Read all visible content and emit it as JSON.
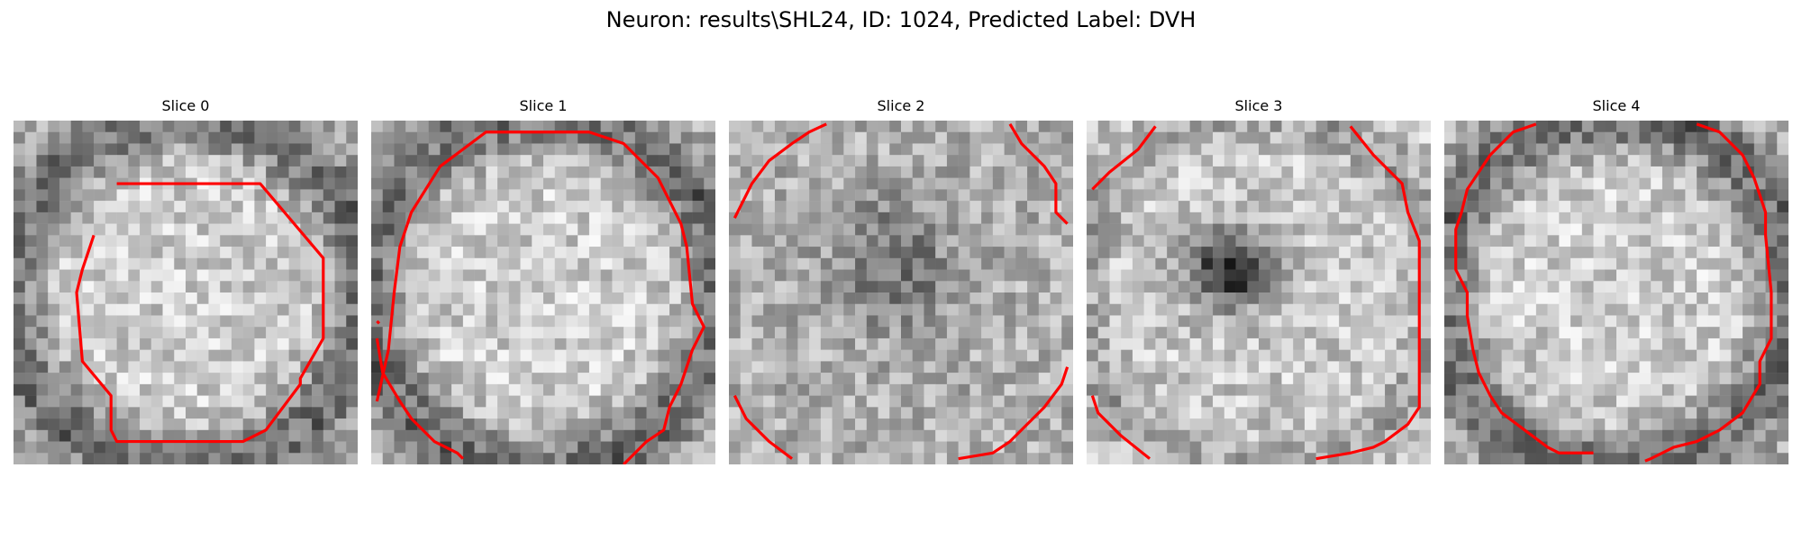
{
  "figure": {
    "title": "Neuron: results\\SHL24, ID: 1024, Predicted Label: DVH"
  },
  "colors": {
    "contour": "#ff0000",
    "background": "#ffffff"
  },
  "grid_size": 30,
  "slices": [
    {
      "label": "Slice 0",
      "style": "ring",
      "contours": [
        [
          [
            9,
            5.5
          ],
          [
            21.5,
            5.5
          ],
          [
            27,
            12
          ],
          [
            27,
            19
          ],
          [
            25,
            22.5
          ],
          [
            25,
            23
          ],
          [
            22,
            27
          ],
          [
            20,
            28
          ],
          [
            9,
            28
          ],
          [
            8.5,
            27
          ],
          [
            8.5,
            24
          ],
          [
            6,
            21
          ],
          [
            5.5,
            15
          ],
          [
            6,
            13
          ],
          [
            7,
            10
          ]
        ]
      ]
    },
    {
      "label": "Slice 1",
      "style": "ring",
      "contours": [
        [
          [
            0.5,
            24.5
          ],
          [
            1.5,
            20
          ],
          [
            2,
            15
          ],
          [
            2.5,
            11
          ],
          [
            3.5,
            8
          ],
          [
            6,
            4
          ],
          [
            10,
            1
          ],
          [
            19,
            1
          ],
          [
            22,
            2
          ],
          [
            25,
            5
          ],
          [
            27,
            9
          ],
          [
            27.5,
            11
          ],
          [
            28,
            16
          ],
          [
            29,
            18
          ],
          [
            28,
            20
          ],
          [
            27,
            23
          ],
          [
            26,
            25
          ],
          [
            25.5,
            27
          ],
          [
            24,
            28
          ],
          [
            22,
            30
          ]
        ],
        [
          [
            0.5,
            17.5
          ],
          [
            0.7,
            17.7
          ]
        ],
        [
          [
            0.5,
            19
          ],
          [
            1,
            22
          ],
          [
            2.5,
            24.5
          ],
          [
            3.5,
            26
          ],
          [
            5.5,
            28
          ],
          [
            7.5,
            29
          ],
          [
            8,
            29.5
          ]
        ]
      ]
    },
    {
      "label": "Slice 2",
      "style": "dark-center",
      "contours": [
        [
          [
            0.5,
            8.5
          ],
          [
            2,
            5.5
          ],
          [
            3.5,
            3.5
          ],
          [
            5.5,
            2
          ],
          [
            7,
            1
          ],
          [
            8.5,
            0.3
          ]
        ],
        [
          [
            24.5,
            0.3
          ],
          [
            25.5,
            2
          ],
          [
            27.5,
            4
          ],
          [
            28.5,
            5.5
          ],
          [
            28.5,
            8
          ],
          [
            29.5,
            9
          ]
        ],
        [
          [
            0.5,
            24
          ],
          [
            1.5,
            26
          ],
          [
            3.5,
            28
          ],
          [
            5.5,
            29.5
          ]
        ],
        [
          [
            29.5,
            21.5
          ],
          [
            29,
            23
          ],
          [
            27.5,
            25
          ],
          [
            26,
            26.5
          ],
          [
            24.5,
            28
          ],
          [
            23,
            29
          ],
          [
            20,
            29.5
          ]
        ]
      ]
    },
    {
      "label": "Slice 3",
      "style": "hole",
      "contours": [
        [
          [
            0.5,
            6
          ],
          [
            2,
            4.5
          ],
          [
            4.5,
            2.5
          ],
          [
            6,
            0.5
          ]
        ],
        [
          [
            23,
            0.5
          ],
          [
            25,
            3
          ],
          [
            27.5,
            5.5
          ],
          [
            28,
            8
          ],
          [
            29,
            10.5
          ],
          [
            29,
            25
          ],
          [
            28,
            26.5
          ],
          [
            26,
            28
          ],
          [
            25,
            28.5
          ],
          [
            23,
            29
          ],
          [
            20,
            29.5
          ]
        ],
        [
          [
            0.5,
            24
          ],
          [
            1,
            25.5
          ],
          [
            3,
            27.5
          ],
          [
            5.5,
            29.5
          ]
        ]
      ]
    },
    {
      "label": "Slice 4",
      "style": "ring",
      "contours": [
        [
          [
            8,
            0.3
          ],
          [
            6,
            1
          ],
          [
            4,
            3
          ],
          [
            2,
            6
          ],
          [
            1.5,
            8
          ],
          [
            1,
            9.5
          ],
          [
            1,
            13
          ],
          [
            2,
            15
          ],
          [
            2,
            17
          ],
          [
            2.5,
            20
          ],
          [
            3,
            22
          ],
          [
            4,
            24
          ],
          [
            5,
            25.5
          ],
          [
            7,
            27
          ],
          [
            9,
            28.5
          ],
          [
            10,
            29
          ],
          [
            13,
            29
          ]
        ],
        [
          [
            22,
            0.3
          ],
          [
            24,
            1
          ],
          [
            26,
            3
          ],
          [
            27,
            5
          ],
          [
            27.5,
            6.5
          ],
          [
            28,
            8
          ],
          [
            28,
            10
          ],
          [
            28.5,
            15
          ],
          [
            28.5,
            19
          ],
          [
            27.5,
            21
          ],
          [
            27.5,
            23
          ],
          [
            26,
            25.5
          ],
          [
            24,
            27
          ],
          [
            22,
            28
          ],
          [
            20,
            28.5
          ],
          [
            18,
            29.5
          ],
          [
            17.5,
            29.7
          ]
        ]
      ]
    }
  ]
}
